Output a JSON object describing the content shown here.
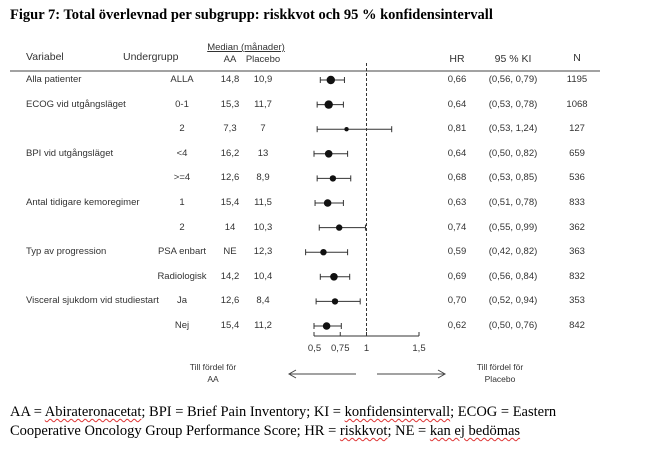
{
  "title": "Figur 7: Total överlevnad per subgrupp: riskkvot och 95 % konfidensintervall",
  "headers": {
    "variable": "Variabel",
    "subgroup": "Undergrupp",
    "median": "Median (månader)",
    "aa": "AA",
    "placebo": "Placebo",
    "hr": "HR",
    "ci": "95 % KI",
    "n": "N"
  },
  "chart_data": {
    "type": "forest",
    "xlim": [
      0.5,
      1.5
    ],
    "reference_line": 1,
    "xticks": [
      0.5,
      0.75,
      1,
      1.5
    ],
    "xtick_labels": [
      "0,5",
      "0,75",
      "1",
      "1,5"
    ],
    "favors_left": [
      "Till fördel för",
      "AA"
    ],
    "favors_right": [
      "Till fördel för",
      "Placebo"
    ],
    "rows": [
      {
        "variable": "Alla patienter",
        "subgroup": "ALLA",
        "aa": "14,8",
        "placebo": "10,9",
        "hr_label": "0,66",
        "ci_label": "(0,56, 0,79)",
        "n": "1195",
        "hr": 0.66,
        "lo": 0.56,
        "hi": 0.79
      },
      {
        "variable": "ECOG vid utgångsläget",
        "subgroup": "0-1",
        "aa": "15,3",
        "placebo": "11,7",
        "hr_label": "0,64",
        "ci_label": "(0,53, 0,78)",
        "n": "1068",
        "hr": 0.64,
        "lo": 0.53,
        "hi": 0.78
      },
      {
        "variable": "",
        "subgroup": "2",
        "aa": "7,3",
        "placebo": "7",
        "hr_label": "0,81",
        "ci_label": "(0,53, 1,24)",
        "n": "127",
        "hr": 0.81,
        "lo": 0.53,
        "hi": 1.24
      },
      {
        "variable": "BPI vid utgångsläget",
        "subgroup": "<4",
        "aa": "16,2",
        "placebo": "13",
        "hr_label": "0,64",
        "ci_label": "(0,50, 0,82)",
        "n": "659",
        "hr": 0.64,
        "lo": 0.5,
        "hi": 0.82
      },
      {
        "variable": "",
        "subgroup": ">=4",
        "aa": "12,6",
        "placebo": "8,9",
        "hr_label": "0,68",
        "ci_label": "(0,53, 0,85)",
        "n": "536",
        "hr": 0.68,
        "lo": 0.53,
        "hi": 0.85
      },
      {
        "variable": "Antal tidigare kemoregimer",
        "subgroup": "1",
        "aa": "15,4",
        "placebo": "11,5",
        "hr_label": "0,63",
        "ci_label": "(0,51, 0,78)",
        "n": "833",
        "hr": 0.63,
        "lo": 0.51,
        "hi": 0.78
      },
      {
        "variable": "",
        "subgroup": "2",
        "aa": "14",
        "placebo": "10,3",
        "hr_label": "0,74",
        "ci_label": "(0,55, 0,99)",
        "n": "362",
        "hr": 0.74,
        "lo": 0.55,
        "hi": 0.99
      },
      {
        "variable": "Typ av progression",
        "subgroup": "PSA enbart",
        "aa": "NE",
        "placebo": "12,3",
        "hr_label": "0,59",
        "ci_label": "(0,42, 0,82)",
        "n": "363",
        "hr": 0.59,
        "lo": 0.42,
        "hi": 0.82
      },
      {
        "variable": "",
        "subgroup": "Radiologisk",
        "aa": "14,2",
        "placebo": "10,4",
        "hr_label": "0,69",
        "ci_label": "(0,56, 0,84)",
        "n": "832",
        "hr": 0.69,
        "lo": 0.56,
        "hi": 0.84
      },
      {
        "variable": "Visceral sjukdom vid studiestart",
        "subgroup": "Ja",
        "aa": "12,6",
        "placebo": "8,4",
        "hr_label": "0,70",
        "ci_label": "(0,52, 0,94)",
        "n": "353",
        "hr": 0.7,
        "lo": 0.52,
        "hi": 0.94
      },
      {
        "variable": "",
        "subgroup": "Nej",
        "aa": "15,4",
        "placebo": "11,2",
        "hr_label": "0,62",
        "ci_label": "(0,50, 0,76)",
        "n": "842",
        "hr": 0.62,
        "lo": 0.5,
        "hi": 0.76
      }
    ]
  },
  "caption": {
    "line1": [
      {
        "text": "AA = ",
        "sq": false
      },
      {
        "text": "Abirateronacetat",
        "sq": true
      },
      {
        "text": "; BPI = Brief Pain Inventory; KI = ",
        "sq": false
      },
      {
        "text": "konfidensintervall",
        "sq": true
      },
      {
        "text": "; ECOG = Eastern",
        "sq": false
      }
    ],
    "line2": [
      {
        "text": "Cooperative Oncology Group Performance Score; HR = ",
        "sq": false
      },
      {
        "text": "riskkvot",
        "sq": true
      },
      {
        "text": "; NE = ",
        "sq": false
      },
      {
        "text": "kan ej bedömas",
        "sq": true
      }
    ]
  }
}
